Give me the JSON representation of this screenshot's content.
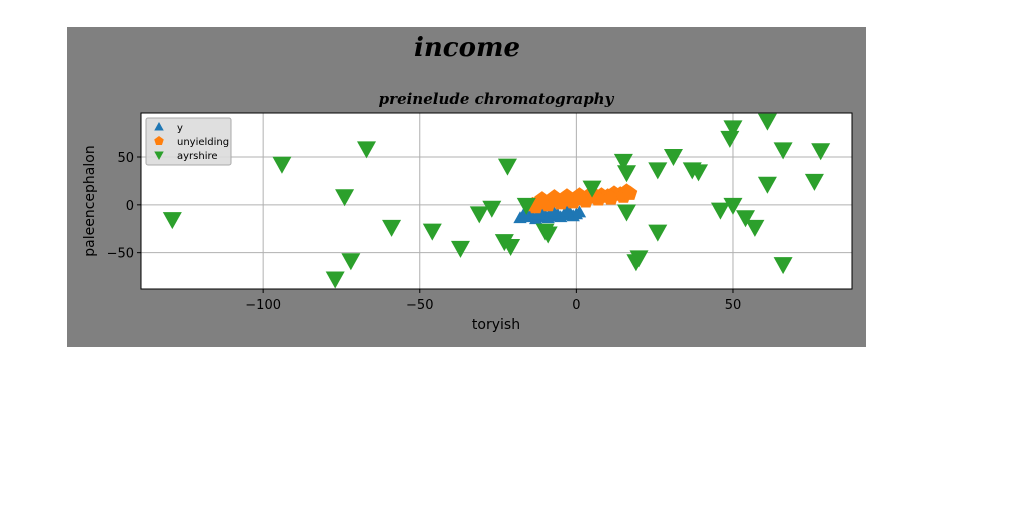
{
  "colors": {
    "figure_bg": "#808080",
    "plot_bg": "#ffffff",
    "grid": "#b0b0b0",
    "series_y": "#1f77b4",
    "series_unyielding": "#ff7f0e",
    "series_ayrshire": "#2ca02c"
  },
  "chart_data": {
    "type": "scatter",
    "suptitle": "income",
    "title": "preinelude chromatography",
    "xlabel": "toryish",
    "ylabel": "paleencephalon",
    "xlim": [
      -139,
      88
    ],
    "ylim": [
      -88,
      96
    ],
    "xticks": [
      -100,
      -50,
      0,
      50
    ],
    "yticks": [
      -50,
      0,
      50
    ],
    "grid": true,
    "legend_position": "upper-left",
    "series": [
      {
        "name": "y",
        "marker": "triangle-up",
        "color": "#1f77b4",
        "points": [
          [
            -18,
            -14
          ],
          [
            -16,
            -13
          ],
          [
            -14,
            -12
          ],
          [
            -12,
            -13
          ],
          [
            -10,
            -11
          ],
          [
            -8,
            -12
          ],
          [
            -6,
            -10
          ],
          [
            -4,
            -11
          ],
          [
            -2,
            -9
          ],
          [
            0,
            -10
          ],
          [
            -17,
            -11
          ],
          [
            -13,
            -15
          ],
          [
            -9,
            -14
          ],
          [
            -5,
            -13
          ],
          [
            -1,
            -12
          ],
          [
            -15,
            -9
          ],
          [
            -11,
            -8
          ],
          [
            -7,
            -9
          ],
          [
            -3,
            -7
          ],
          [
            1,
            -8
          ],
          [
            -12,
            -10
          ],
          [
            -8,
            -7
          ]
        ]
      },
      {
        "name": "unyielding",
        "marker": "pentagon",
        "color": "#ff7f0e",
        "points": [
          [
            -14,
            0
          ],
          [
            -12,
            3
          ],
          [
            -10,
            2
          ],
          [
            -8,
            5
          ],
          [
            -6,
            4
          ],
          [
            -4,
            6
          ],
          [
            -2,
            5
          ],
          [
            0,
            7
          ],
          [
            2,
            6
          ],
          [
            4,
            9
          ],
          [
            6,
            8
          ],
          [
            8,
            10
          ],
          [
            10,
            9
          ],
          [
            12,
            12
          ],
          [
            14,
            11
          ],
          [
            16,
            14
          ],
          [
            -13,
            -2
          ],
          [
            -9,
            0
          ],
          [
            -5,
            2
          ],
          [
            -1,
            3
          ],
          [
            3,
            4
          ],
          [
            7,
            6
          ],
          [
            11,
            7
          ],
          [
            15,
            9
          ],
          [
            17,
            12
          ],
          [
            -11,
            6
          ],
          [
            -7,
            8
          ],
          [
            -3,
            9
          ],
          [
            1,
            10
          ],
          [
            5,
            12
          ]
        ]
      },
      {
        "name": "ayrshire",
        "marker": "triangle-down",
        "color": "#2ca02c",
        "points": [
          [
            -129,
            -15
          ],
          [
            -94,
            43
          ],
          [
            -74,
            9
          ],
          [
            -72,
            -58
          ],
          [
            -67,
            59
          ],
          [
            -59,
            -23
          ],
          [
            -46,
            -27
          ],
          [
            -37,
            -45
          ],
          [
            -31,
            -9
          ],
          [
            -27,
            -3
          ],
          [
            -23,
            -38
          ],
          [
            -22,
            41
          ],
          [
            -21,
            -43
          ],
          [
            -16,
            0
          ],
          [
            -10,
            -27
          ],
          [
            -9,
            -30
          ],
          [
            5,
            18
          ],
          [
            15,
            46
          ],
          [
            16,
            34
          ],
          [
            16,
            -7
          ],
          [
            19,
            -59
          ],
          [
            20,
            -55
          ],
          [
            26,
            37
          ],
          [
            26,
            -28
          ],
          [
            31,
            51
          ],
          [
            37,
            37
          ],
          [
            39,
            35
          ],
          [
            46,
            -5
          ],
          [
            49,
            70
          ],
          [
            50,
            81
          ],
          [
            50,
            0
          ],
          [
            54,
            -13
          ],
          [
            57,
            -23
          ],
          [
            61,
            88
          ],
          [
            61,
            22
          ],
          [
            66,
            -62
          ],
          [
            66,
            58
          ],
          [
            76,
            25
          ],
          [
            78,
            57
          ],
          [
            -77,
            -77
          ]
        ]
      }
    ]
  }
}
